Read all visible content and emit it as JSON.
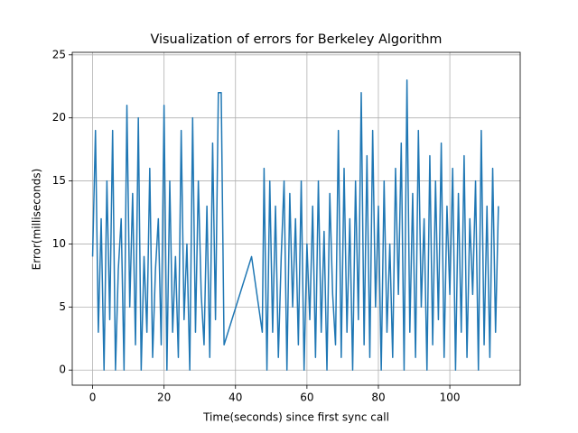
{
  "chart_data": {
    "type": "line",
    "title": "Visualization of errors for Berkeley Algorithm",
    "xlabel": "Time(seconds) since first sync call",
    "ylabel": "Error(milliseconds)",
    "color": "#1f77b4",
    "grid": true,
    "xlim": [
      -5.7,
      119.7
    ],
    "xticks": [
      0,
      20,
      40,
      60,
      80,
      100
    ],
    "ylim": [
      -1.2,
      25.2
    ],
    "yticks": [
      0,
      5,
      10,
      15,
      20,
      25
    ],
    "x": [
      0,
      0.8,
      1.6,
      2.4,
      3.2,
      4,
      4.8,
      5.6,
      6.4,
      7.2,
      8,
      8.8,
      9.6,
      10.4,
      11.2,
      12,
      12.8,
      13.6,
      14.4,
      15.2,
      16,
      16.8,
      17.6,
      18.4,
      19.2,
      20,
      20.8,
      21.6,
      22.4,
      23.2,
      24,
      24.8,
      25.6,
      26.4,
      27.2,
      28,
      28.8,
      29.6,
      30.4,
      31.2,
      32,
      32.8,
      33.6,
      34.4,
      35.2,
      36,
      36.8,
      44.5,
      47.5,
      48,
      48.8,
      49.6,
      50.4,
      51.2,
      52,
      52.8,
      53.6,
      54.4,
      55.2,
      56,
      56.8,
      57.6,
      58.4,
      59.2,
      60,
      60.8,
      61.6,
      62.4,
      63.2,
      64,
      64.8,
      65.6,
      66.4,
      67.2,
      68,
      68.8,
      69.6,
      70.4,
      71.2,
      72,
      72.8,
      73.6,
      74.4,
      75.2,
      76,
      76.8,
      77.6,
      78.4,
      79.2,
      80,
      80.8,
      81.6,
      82.4,
      83.2,
      84,
      84.8,
      85.6,
      86.4,
      87.2,
      88,
      88.8,
      89.6,
      90.4,
      91.2,
      92,
      92.8,
      93.6,
      94.4,
      95.2,
      96,
      96.8,
      97.6,
      98.4,
      99.2,
      100,
      100.8,
      101.6,
      102.4,
      103.2,
      104,
      104.8,
      105.6,
      106.4,
      107.2,
      108,
      108.8,
      109.6,
      110.4,
      111.2,
      112,
      112.8,
      113.6
    ],
    "values": [
      9,
      19,
      3,
      12,
      0,
      15,
      4,
      19,
      0,
      8,
      12,
      0,
      21,
      5,
      14,
      2,
      20,
      0,
      9,
      3,
      16,
      1,
      8,
      12,
      2,
      21,
      0,
      15,
      3,
      9,
      1,
      19,
      4,
      10,
      0,
      20,
      3,
      15,
      6,
      2,
      13,
      1,
      18,
      4,
      22,
      22,
      2,
      9,
      3,
      16,
      0,
      15,
      3,
      13,
      1,
      9,
      15,
      0,
      14,
      5,
      12,
      2,
      15,
      0,
      10,
      4,
      13,
      1,
      15,
      3,
      11,
      0,
      14,
      6,
      2,
      19,
      1,
      16,
      3,
      12,
      0,
      15,
      4,
      22,
      2,
      17,
      1,
      19,
      5,
      13,
      0,
      15,
      3,
      10,
      1,
      16,
      6,
      18,
      0,
      23,
      3,
      14,
      1,
      19,
      5,
      12,
      0,
      17,
      2,
      15,
      4,
      18,
      1,
      13,
      6,
      16,
      0,
      14,
      3,
      17,
      1,
      12,
      6,
      15,
      0,
      19,
      2,
      13,
      1,
      16,
      3,
      13
    ]
  }
}
